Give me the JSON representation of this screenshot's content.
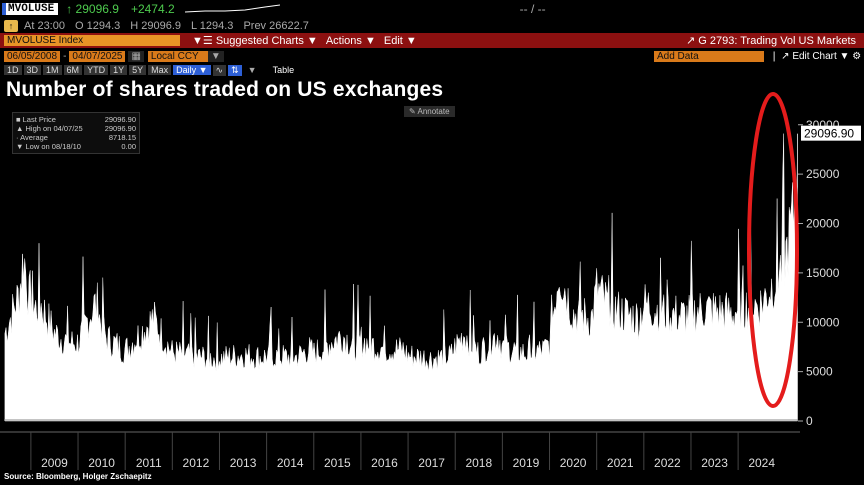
{
  "header": {
    "ticker": "MVOLUSE",
    "last": "↑ 29096.9",
    "change": "+2474.2",
    "dashes": "-- / --",
    "at_label": "At 23:00",
    "open": "O 1294.3",
    "high": "H 29096.9",
    "low": "L 1294.3",
    "prev": "Prev 26622.7"
  },
  "toolbar": {
    "index_label": "MVOLUSE Index",
    "suggested": "Suggested Charts",
    "actions": "Actions",
    "edit": "Edit",
    "g_title": "G 2793: Trading Vol US Markets"
  },
  "controls": {
    "date_from": "06/05/2008",
    "date_to": "04/07/2025",
    "currency": "Local CCY",
    "add_data": "Add Data",
    "edit_chart": "Edit Chart"
  },
  "periods": [
    "1D",
    "3D",
    "1M",
    "6M",
    "YTD",
    "1Y",
    "5Y",
    "Max"
  ],
  "period_active": "Daily",
  "table_label": "Table",
  "title": "Number of shares traded on US exchanges",
  "annotate_label": "Annotate",
  "legend": [
    {
      "label": "Last Price",
      "value": "29096.90"
    },
    {
      "label": "High on 04/07/25",
      "value": "29096.90"
    },
    {
      "label": "Average",
      "value": "8718.15"
    },
    {
      "label": "Low on 08/18/10",
      "value": "0.00"
    }
  ],
  "source": "Source: Bloomberg, Holger Zschaepitz",
  "chart_data": {
    "type": "area",
    "title": "Number of shares traded on US exchanges",
    "xlabel": "",
    "ylabel": "",
    "x_ticks": [
      "2009",
      "2010",
      "2011",
      "2012",
      "2013",
      "2014",
      "2015",
      "2016",
      "2017",
      "2018",
      "2019",
      "2020",
      "2021",
      "2022",
      "2023",
      "2024"
    ],
    "y_ticks": [
      0,
      5000,
      10000,
      15000,
      20000,
      25000,
      30000
    ],
    "ylim": [
      0,
      32000
    ],
    "xlim": [
      2008.43,
      2025.27
    ],
    "last_value_label": "29096.90",
    "grid": false,
    "series": [
      {
        "values_by_date": [
          [
            2008.45,
            9000
          ],
          [
            2008.75,
            13000
          ],
          [
            2008.85,
            17000
          ],
          [
            2009.0,
            11000
          ],
          [
            2009.2,
            12000
          ],
          [
            2009.5,
            9000
          ],
          [
            2009.8,
            8000
          ],
          [
            2010.0,
            8000
          ],
          [
            2010.35,
            12000
          ],
          [
            2010.6,
            8500
          ],
          [
            2011.0,
            7200
          ],
          [
            2011.6,
            10500
          ],
          [
            2011.9,
            7800
          ],
          [
            2012.0,
            7000
          ],
          [
            2012.5,
            6600
          ],
          [
            2012.9,
            6400
          ],
          [
            2013.0,
            6400
          ],
          [
            2013.5,
            6800
          ],
          [
            2013.9,
            6500
          ],
          [
            2014.0,
            6700
          ],
          [
            2014.6,
            6500
          ],
          [
            2014.9,
            7300
          ],
          [
            2015.0,
            6900
          ],
          [
            2015.6,
            8800
          ],
          [
            2015.9,
            7600
          ],
          [
            2016.0,
            8200
          ],
          [
            2016.5,
            7400
          ],
          [
            2016.9,
            7300
          ],
          [
            2017.0,
            6700
          ],
          [
            2017.5,
            6400
          ],
          [
            2017.9,
            6600
          ],
          [
            2018.0,
            7600
          ],
          [
            2018.2,
            9000
          ],
          [
            2018.5,
            6900
          ],
          [
            2018.9,
            8900
          ],
          [
            2019.0,
            7600
          ],
          [
            2019.5,
            6900
          ],
          [
            2019.9,
            7300
          ],
          [
            2020.0,
            8000
          ],
          [
            2020.2,
            15500
          ],
          [
            2020.5,
            11000
          ],
          [
            2020.9,
            10500
          ],
          [
            2021.0,
            13500
          ],
          [
            2021.3,
            11500
          ],
          [
            2021.9,
            10500
          ],
          [
            2022.0,
            12000
          ],
          [
            2022.5,
            11000
          ],
          [
            2022.9,
            10700
          ],
          [
            2023.0,
            11000
          ],
          [
            2023.3,
            11500
          ],
          [
            2023.9,
            11000
          ],
          [
            2024.0,
            11500
          ],
          [
            2024.5,
            12000
          ],
          [
            2024.9,
            15500
          ],
          [
            2025.0,
            16500
          ],
          [
            2025.2,
            22000
          ],
          [
            2025.26,
            29096.9
          ]
        ]
      }
    ],
    "annotation": "red ellipse highlighting 2024–2025"
  },
  "colors": {
    "accent_red": "#8c1010",
    "accent_blue": "#2d5fd6",
    "orange": "#e89426",
    "highlight": "#e41c1c"
  }
}
